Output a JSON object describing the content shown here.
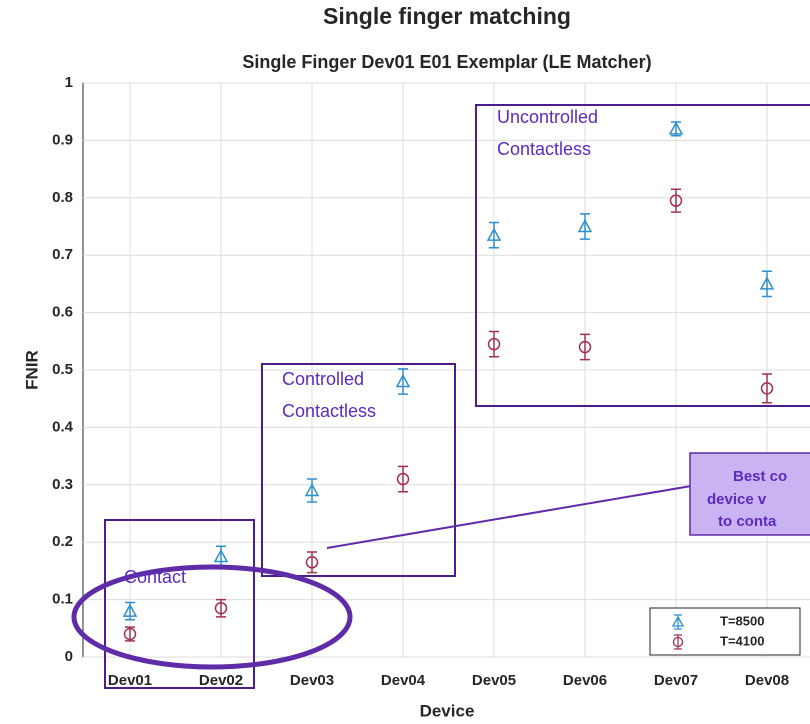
{
  "chart_data": {
    "type": "scatter",
    "page_title": "Single finger matching",
    "title": "Single Finger Dev01 E01 Exemplar (LE Matcher)",
    "x_label": "Device",
    "y_label": "FNIR",
    "categories": [
      "Dev01",
      "Dev02",
      "Dev03",
      "Dev04",
      "Dev05",
      "Dev06",
      "Dev07",
      "Dev08"
    ],
    "series": [
      {
        "name": "T=8500",
        "color": "#2e8fcf",
        "marker": "triangle",
        "values": [
          0.08,
          0.175,
          0.29,
          0.48,
          0.735,
          0.75,
          0.92,
          0.65
        ],
        "errors": [
          0.015,
          0.018,
          0.02,
          0.022,
          0.022,
          0.022,
          0.012,
          0.022
        ]
      },
      {
        "name": "T=4100",
        "color": "#a3304d",
        "marker": "circle",
        "values": [
          0.04,
          0.085,
          0.165,
          0.31,
          0.545,
          0.54,
          0.795,
          0.468
        ],
        "errors": [
          0.012,
          0.015,
          0.018,
          0.022,
          0.022,
          0.022,
          0.02,
          0.025
        ]
      }
    ],
    "ylim": [
      0,
      1
    ],
    "yticks": [
      0,
      0.1,
      0.2,
      0.3,
      0.4,
      0.5,
      0.6,
      0.7,
      0.8,
      0.9,
      1
    ],
    "grid": true,
    "legend": "lower right",
    "annotations": {
      "contact": "Contact",
      "controlled": [
        "Controlled",
        "Contactless"
      ],
      "uncontrolled": [
        "Uncontrolled",
        "Contactless"
      ],
      "callout": [
        "Best co",
        "device v",
        "to conta"
      ]
    }
  }
}
